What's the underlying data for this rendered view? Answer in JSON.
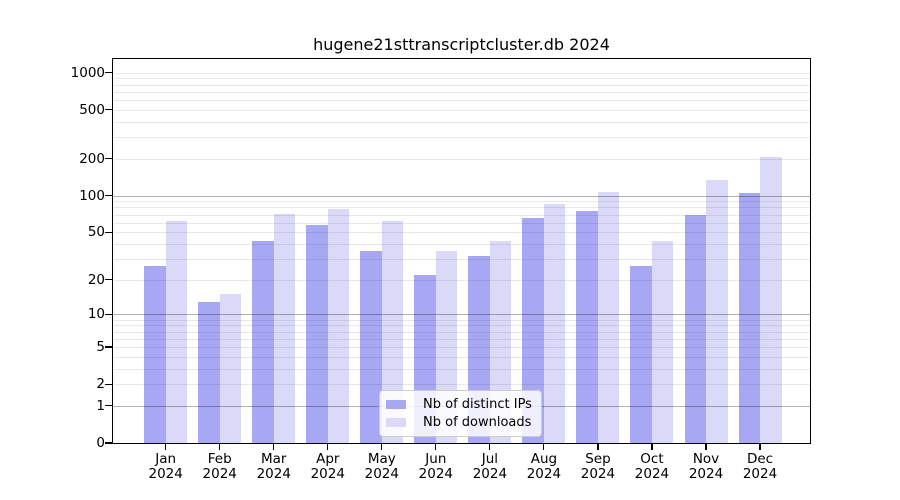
{
  "chart_data": {
    "type": "bar",
    "title": "hugene21sttranscriptcluster.db 2024",
    "categories": [
      [
        "Jan",
        "2024"
      ],
      [
        "Feb",
        "2024"
      ],
      [
        "Mar",
        "2024"
      ],
      [
        "Apr",
        "2024"
      ],
      [
        "May",
        "2024"
      ],
      [
        "Jun",
        "2024"
      ],
      [
        "Jul",
        "2024"
      ],
      [
        "Aug",
        "2024"
      ],
      [
        "Sep",
        "2024"
      ],
      [
        "Oct",
        "2024"
      ],
      [
        "Nov",
        "2024"
      ],
      [
        "Dec",
        "2024"
      ]
    ],
    "series": [
      {
        "name": "Nb of distinct IPs",
        "color": "#a7a7f4",
        "values": [
          26,
          13,
          42,
          57,
          35,
          22,
          32,
          66,
          75,
          26,
          69,
          105
        ]
      },
      {
        "name": "Nb of downloads",
        "color": "#dadaf8",
        "values": [
          62,
          15,
          71,
          78,
          62,
          35,
          42,
          86,
          107,
          42,
          135,
          205
        ]
      }
    ],
    "yscale": "log10(1+x)",
    "yticks": [
      0,
      1,
      2,
      5,
      10,
      20,
      50,
      100,
      200,
      500,
      1000
    ],
    "ylim": [
      0,
      1300
    ],
    "xlabel": "",
    "ylabel": "",
    "grid": true,
    "grid_major_values": [
      1,
      10,
      100
    ],
    "grid_minor_values": [
      2,
      3,
      4,
      5,
      6,
      7,
      8,
      9,
      20,
      30,
      40,
      50,
      60,
      70,
      80,
      90,
      200,
      300,
      400,
      500,
      600,
      700,
      800,
      900,
      1000
    ],
    "legend_position": "lower-center-inside"
  },
  "colors": {
    "bar_ips": "#a7a7f4",
    "bar_downloads": "#dadaf8",
    "grid_major": "rgba(0,0,0,0.30)",
    "grid_minor": "rgba(0,0,0,0.085)",
    "axis": "#000000",
    "legend_border": "#cccccc",
    "background": "#ffffff"
  }
}
